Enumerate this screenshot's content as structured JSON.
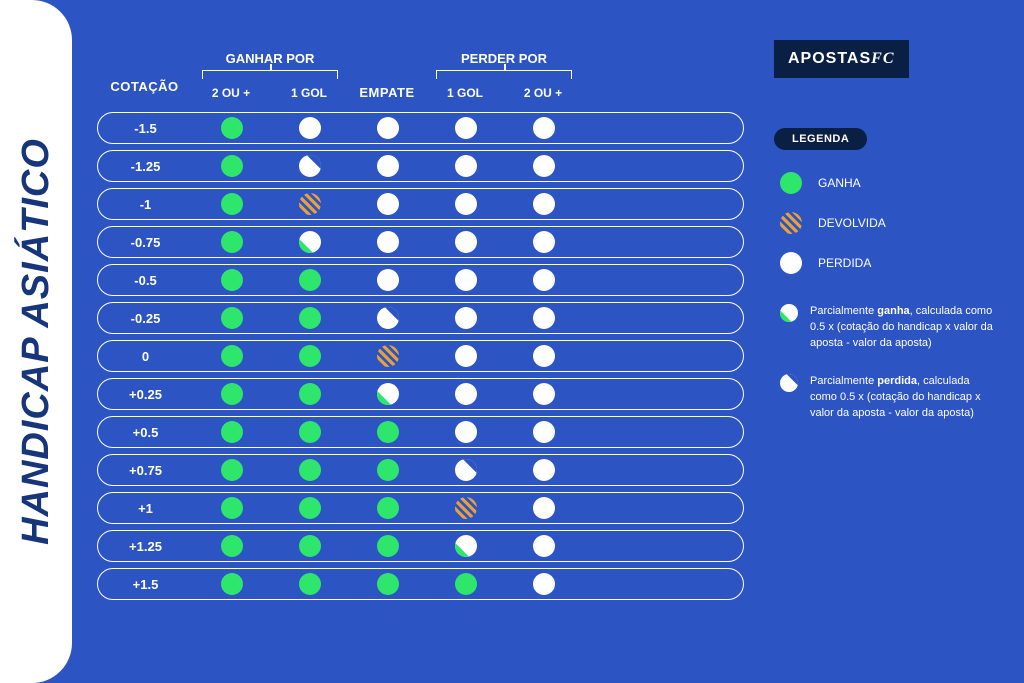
{
  "colors": {
    "background": "#2c54c3",
    "title_text": "#17357a",
    "win": "#2ee66b",
    "lose": "#ffffff",
    "refund": "#e8a03a",
    "border": "#ffffff",
    "logo_bg": "#0a1f44"
  },
  "title": "HANDICAP ASIÁTICO",
  "headers": {
    "cotacao": "COTAÇÃO",
    "ganhar_por": "GANHAR POR",
    "empate": "EMPATE",
    "perder_por": "PERDER POR",
    "sub_2oumais": "2 OU +",
    "sub_1gol": "1 GOL"
  },
  "logo": {
    "text1": "APOSTAS",
    "text2": "FC"
  },
  "legend": {
    "title": "LEGENDA",
    "items": [
      {
        "type": "win",
        "label": "GANHA"
      },
      {
        "type": "refund",
        "label": "DEVOLVIDA"
      },
      {
        "type": "lose",
        "label": "PERDIDA"
      }
    ],
    "notes": [
      {
        "icon": "half-win",
        "html": "Parcialmente <b>ganha</b>, calculada como 0.5 x (cotação do handicap x valor da aposta - valor da aposta)"
      },
      {
        "icon": "half-lose",
        "html": "Parcialmente <b>perdida</b>, calculada como 0.5 x (cotação do handicap x valor da aposta - valor da aposta)"
      }
    ]
  },
  "rows": [
    {
      "label": "-1.5",
      "cells": [
        "win",
        "lose",
        "lose",
        "lose",
        "lose"
      ]
    },
    {
      "label": "-1.25",
      "cells": [
        "win",
        "half-lose",
        "lose",
        "lose",
        "lose"
      ]
    },
    {
      "label": "-1",
      "cells": [
        "win",
        "refund",
        "lose",
        "lose",
        "lose"
      ]
    },
    {
      "label": "-0.75",
      "cells": [
        "win",
        "half-win",
        "lose",
        "lose",
        "lose"
      ]
    },
    {
      "label": "-0.5",
      "cells": [
        "win",
        "win",
        "lose",
        "lose",
        "lose"
      ]
    },
    {
      "label": "-0.25",
      "cells": [
        "win",
        "win",
        "half-lose",
        "lose",
        "lose"
      ]
    },
    {
      "label": "0",
      "cells": [
        "win",
        "win",
        "refund",
        "lose",
        "lose"
      ]
    },
    {
      "label": "+0.25",
      "cells": [
        "win",
        "win",
        "half-win",
        "lose",
        "lose"
      ]
    },
    {
      "label": "+0.5",
      "cells": [
        "win",
        "win",
        "win",
        "lose",
        "lose"
      ]
    },
    {
      "label": "+0.75",
      "cells": [
        "win",
        "win",
        "win",
        "half-lose",
        "lose"
      ]
    },
    {
      "label": "+1",
      "cells": [
        "win",
        "win",
        "win",
        "refund",
        "lose"
      ]
    },
    {
      "label": "+1.25",
      "cells": [
        "win",
        "win",
        "win",
        "half-win",
        "lose"
      ]
    },
    {
      "label": "+1.5",
      "cells": [
        "win",
        "win",
        "win",
        "win",
        "lose"
      ]
    }
  ]
}
